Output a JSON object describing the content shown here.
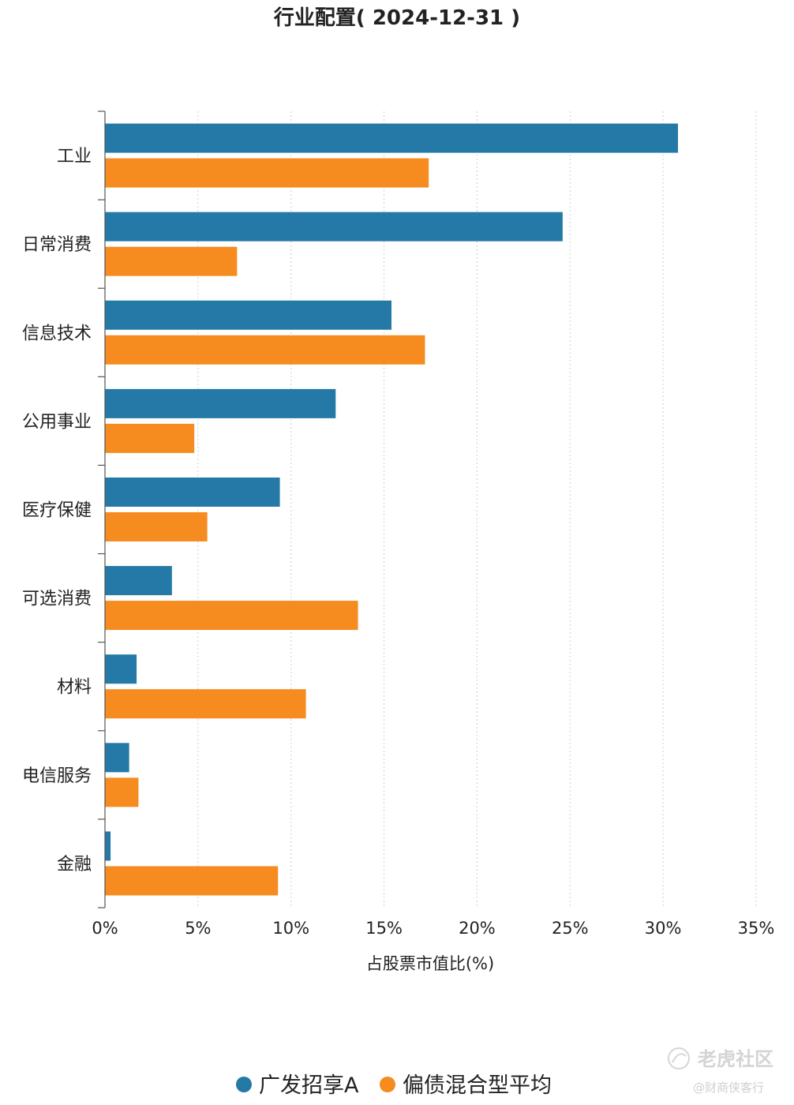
{
  "chart_data": {
    "type": "bar",
    "orientation": "horizontal",
    "title": "行业配置( 2024-12-31 )",
    "xlabel": "占股票市值比(%)",
    "ylabel": "",
    "xlim": [
      0,
      35
    ],
    "x_ticks": [
      "0%",
      "5%",
      "10%",
      "15%",
      "20%",
      "25%",
      "30%",
      "35%"
    ],
    "x_tick_values": [
      0,
      5,
      10,
      15,
      20,
      25,
      30,
      35
    ],
    "grid": true,
    "legend_position": "bottom",
    "categories": [
      "工业",
      "日常消费",
      "信息技术",
      "公用事业",
      "医疗保健",
      "可选消费",
      "材料",
      "电信服务",
      "金融"
    ],
    "series": [
      {
        "name": "广发招享A",
        "color": "#2479a6",
        "values": [
          30.8,
          24.6,
          15.4,
          12.4,
          9.4,
          3.6,
          1.7,
          1.3,
          0.3
        ]
      },
      {
        "name": "偏债混合型平均",
        "color": "#f68b1f",
        "values": [
          17.4,
          7.1,
          17.2,
          4.8,
          5.5,
          13.6,
          10.8,
          1.8,
          9.3
        ]
      }
    ]
  },
  "watermark": {
    "main": "老虎社区",
    "sub": "@财商侠客行"
  }
}
